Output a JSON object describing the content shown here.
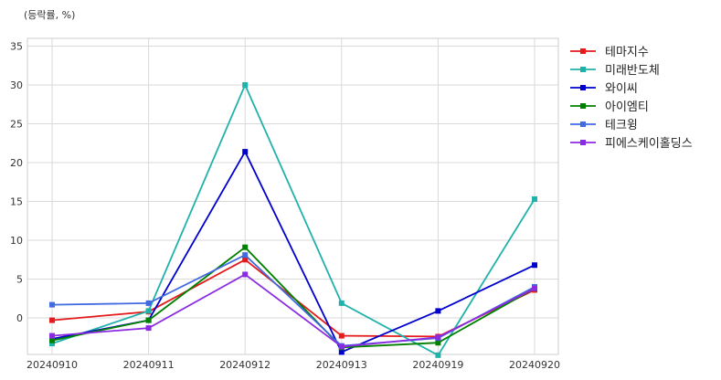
{
  "chart_data": {
    "type": "line",
    "unit_label": "(등락률, %)",
    "x": [
      "20240910",
      "20240911",
      "20240912",
      "20240913",
      "20240919",
      "20240920"
    ],
    "ylim": [
      -4.7,
      36
    ],
    "yticks": [
      0,
      5,
      10,
      15,
      20,
      25,
      30,
      35
    ],
    "grid": true,
    "legend_position": "right",
    "series": [
      {
        "name": "테마지수",
        "color": "#e41a1c",
        "values": [
          -0.3,
          0.8,
          7.5,
          -2.3,
          -2.4,
          3.6
        ]
      },
      {
        "name": "미래반도체",
        "color": "#20b2aa",
        "values": [
          -3.3,
          0.9,
          30.0,
          1.9,
          -4.8,
          15.3
        ]
      },
      {
        "name": "와이씨",
        "color": "#0000cd",
        "values": [
          -2.7,
          -0.3,
          21.4,
          -4.4,
          0.9,
          6.8
        ]
      },
      {
        "name": "아이엠티",
        "color": "#008000",
        "values": [
          -2.9,
          -0.3,
          9.1,
          -3.8,
          -3.2,
          3.8
        ]
      },
      {
        "name": "테크윙",
        "color": "#4169e1",
        "values": [
          1.7,
          1.9,
          8.1,
          -3.6,
          -2.6,
          4.0
        ]
      },
      {
        "name": "피에스케이홀딩스",
        "color": "#8a2be2",
        "values": [
          -2.3,
          -1.3,
          5.6,
          -3.7,
          -2.5,
          3.8
        ]
      }
    ]
  }
}
